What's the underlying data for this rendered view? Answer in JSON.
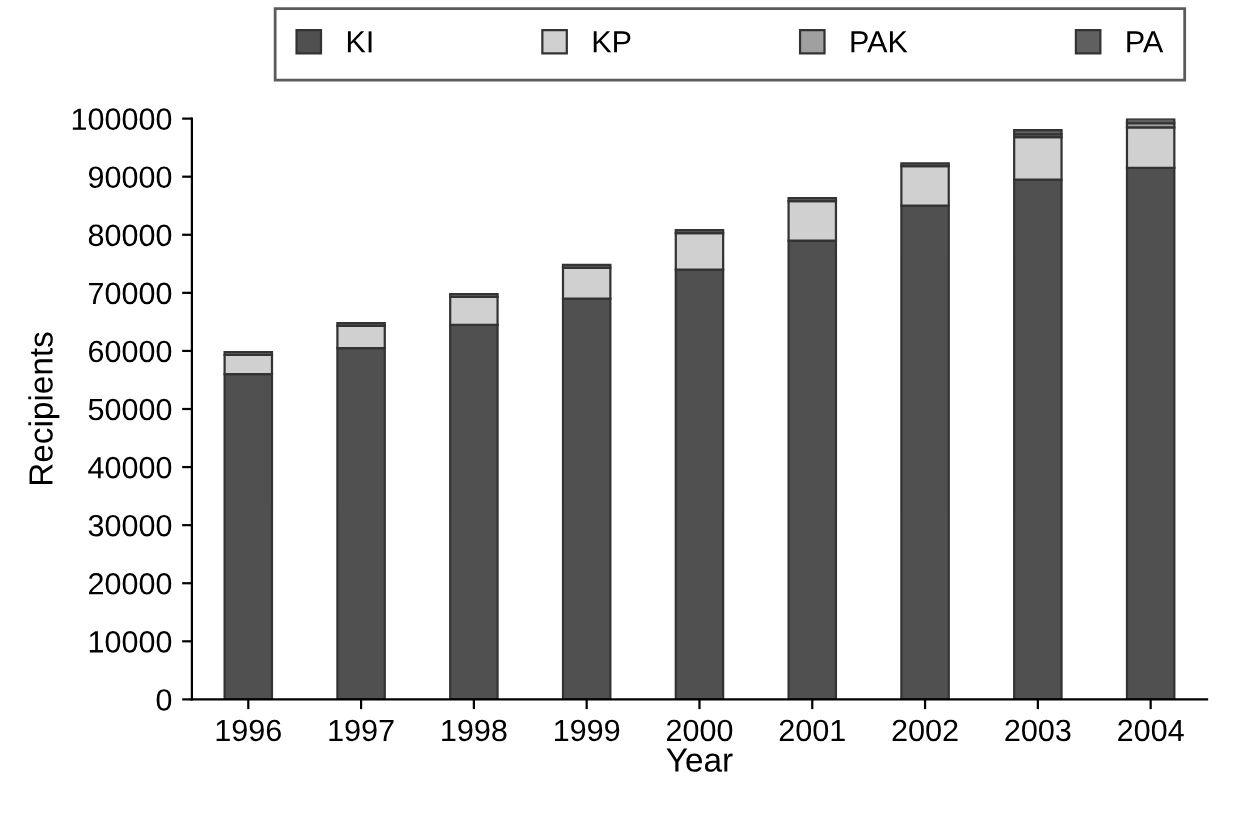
{
  "chart_data": {
    "type": "bar",
    "stacked": true,
    "xlabel": "Year",
    "ylabel": "Recipients",
    "categories": [
      "1996",
      "1997",
      "1998",
      "1999",
      "2000",
      "2001",
      "2002",
      "2003",
      "2004"
    ],
    "series": [
      {
        "name": "KI",
        "color": "#505050",
        "values": [
          56000,
          60500,
          64500,
          69000,
          74000,
          79000,
          85000,
          89500,
          91500
        ]
      },
      {
        "name": "KP",
        "color": "#d0d0d0",
        "values": [
          3300,
          3800,
          4800,
          5300,
          6300,
          6800,
          6800,
          7300,
          7000
        ]
      },
      {
        "name": "PAK",
        "color": "#a0a0a0",
        "values": [
          null,
          null,
          null,
          null,
          null,
          null,
          null,
          500,
          700
        ]
      },
      {
        "name": "PA",
        "color": "#606060",
        "values": [
          500,
          500,
          500,
          500,
          500,
          500,
          500,
          700,
          800
        ]
      }
    ],
    "ylim": [
      0,
      100000
    ],
    "yticks": [
      0,
      10000,
      20000,
      30000,
      40000,
      50000,
      60000,
      70000,
      80000,
      90000,
      100000
    ],
    "grid": false,
    "legend": "top"
  }
}
